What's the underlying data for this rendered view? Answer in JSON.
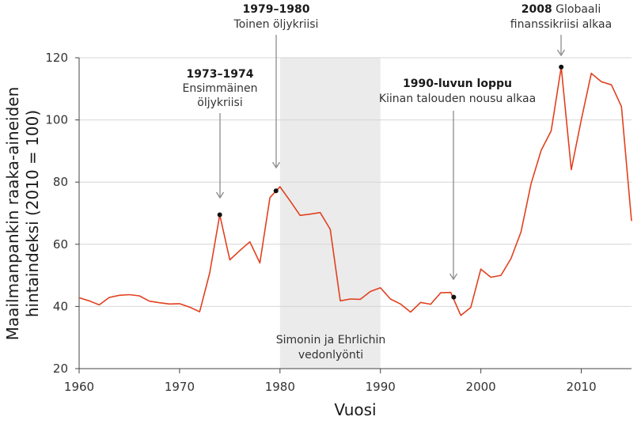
{
  "chart_data": {
    "type": "line",
    "xlabel": "Vuosi",
    "ylabel_lines": [
      "Maailmanpankin raaka-aineiden",
      "hintaindeksi (2010 = 100)"
    ],
    "xlim": [
      1960,
      2015
    ],
    "ylim": [
      20,
      120
    ],
    "x_ticks": [
      1960,
      1970,
      1980,
      1990,
      2000,
      2010
    ],
    "y_ticks": [
      20,
      40,
      60,
      80,
      100,
      120
    ],
    "grid": "horizontal",
    "line_color": "#e2401e",
    "series": [
      {
        "name": "Raaka-aineiden hintaindeksi",
        "x": [
          1960,
          1961,
          1962,
          1963,
          1964,
          1965,
          1966,
          1967,
          1968,
          1969,
          1970,
          1971,
          1972,
          1973,
          1974,
          1975,
          1976,
          1977,
          1978,
          1979,
          1980,
          1981,
          1982,
          1983,
          1984,
          1985,
          1986,
          1987,
          1988,
          1989,
          1990,
          1991,
          1992,
          1993,
          1994,
          1995,
          1996,
          1997,
          1998,
          1999,
          2000,
          2001,
          2002,
          2003,
          2004,
          2005,
          2006,
          2007,
          2008,
          2009,
          2010,
          2011,
          2012,
          2013,
          2014,
          2015
        ],
        "values": [
          42.8,
          41.8,
          40.5,
          42.9,
          43.6,
          43.8,
          43.4,
          41.7,
          41.2,
          40.8,
          40.9,
          39.8,
          38.3,
          50.8,
          69.5,
          55.0,
          58.0,
          60.8,
          54.0,
          75.0,
          78.5,
          74.0,
          69.3,
          69.7,
          70.2,
          64.8,
          41.8,
          42.4,
          42.3,
          44.8,
          46.0,
          42.4,
          40.8,
          38.2,
          41.3,
          40.7,
          44.4,
          44.5,
          37.1,
          39.7,
          52.0,
          49.4,
          50.0,
          55.4,
          64.0,
          79.5,
          90.2,
          96.5,
          117.0,
          84.0,
          100.0,
          115.0,
          112.3,
          111.3,
          104.3,
          67.5
        ]
      }
    ],
    "shaded_region": {
      "x": [
        1980,
        1990
      ],
      "label_lines": [
        "Simonin ja Ehrlichin",
        "vedonlyönti"
      ],
      "color": "#ebebeb"
    },
    "annotations": [
      {
        "id": "oil1",
        "x": 1974,
        "y": 69.5,
        "title": "1973–1974",
        "lines": [
          "Ensimmäinen",
          "öljykriisi"
        ]
      },
      {
        "id": "oil2",
        "x": 1979.6,
        "y": 77.2,
        "title": "1979–1980",
        "lines": [
          "Toinen öljykriisi"
        ]
      },
      {
        "id": "china",
        "x": 1997.3,
        "y": 43.0,
        "title": "1990-luvun loppu",
        "lines": [
          "Kiinan talouden nousu alkaa"
        ]
      },
      {
        "id": "fin",
        "x": 2008,
        "y": 117.0,
        "title": "2008",
        "title_rest": " Globaali",
        "lines": [
          "finanssikriisi alkaa"
        ]
      }
    ]
  }
}
